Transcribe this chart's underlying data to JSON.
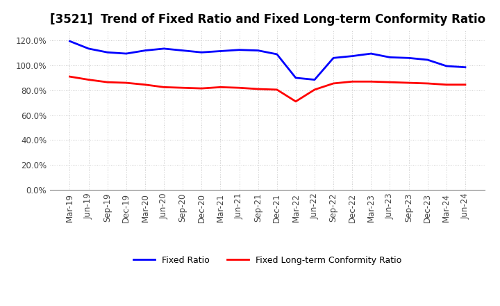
{
  "title": "[3521]  Trend of Fixed Ratio and Fixed Long-term Conformity Ratio",
  "x_labels": [
    "Mar-19",
    "Jun-19",
    "Sep-19",
    "Dec-19",
    "Mar-20",
    "Jun-20",
    "Sep-20",
    "Dec-20",
    "Mar-21",
    "Jun-21",
    "Sep-21",
    "Dec-21",
    "Mar-22",
    "Jun-22",
    "Sep-22",
    "Dec-22",
    "Mar-23",
    "Jun-23",
    "Sep-23",
    "Dec-23",
    "Mar-24",
    "Jun-24"
  ],
  "fixed_ratio": [
    119.5,
    113.5,
    110.5,
    109.5,
    112.0,
    113.5,
    112.0,
    110.5,
    111.5,
    112.5,
    112.0,
    109.0,
    90.0,
    88.5,
    106.0,
    107.5,
    109.5,
    106.5,
    106.0,
    104.5,
    99.5,
    98.5
  ],
  "fixed_lt_ratio": [
    91.0,
    88.5,
    86.5,
    86.0,
    84.5,
    82.5,
    82.0,
    81.5,
    82.5,
    82.0,
    81.0,
    80.5,
    71.0,
    80.5,
    85.5,
    87.0,
    87.0,
    86.5,
    86.0,
    85.5,
    84.5,
    84.5
  ],
  "fixed_ratio_color": "#0000ff",
  "fixed_lt_ratio_color": "#ff0000",
  "ylim": [
    0,
    128
  ],
  "yticks": [
    0,
    20,
    40,
    60,
    80,
    100,
    120
  ],
  "background_color": "#ffffff",
  "grid_color": "#bbbbbb",
  "title_fontsize": 12,
  "tick_fontsize": 8.5,
  "legend_fixed_ratio": "Fixed Ratio",
  "legend_fixed_lt_ratio": "Fixed Long-term Conformity Ratio",
  "line_width": 2.0
}
